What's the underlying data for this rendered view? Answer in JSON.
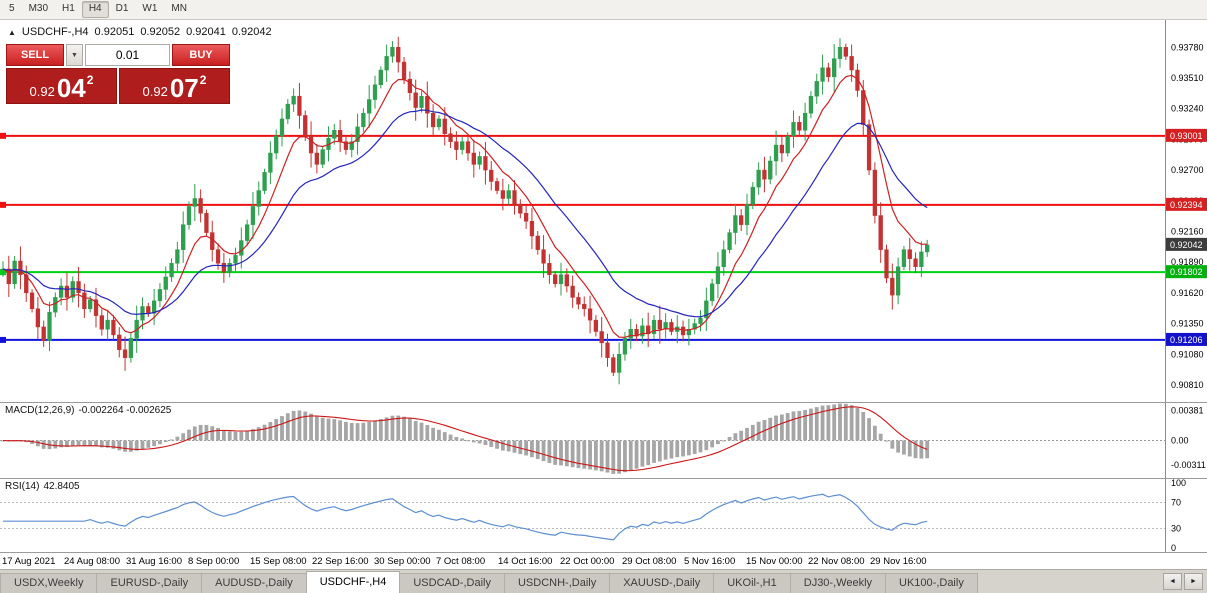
{
  "toolbar": {
    "timeframes": [
      "5",
      "M30",
      "H1",
      "H4",
      "D1",
      "W1",
      "MN"
    ],
    "active_timeframe": "H4"
  },
  "icons": {
    "panel_toggle": "▲",
    "dropdown": "▼",
    "tab_scroll_left": "◄",
    "tab_scroll_right": "►"
  },
  "chart_header": {
    "symbol": "USDCHF-,H4",
    "open": "0.92051",
    "high": "0.92052",
    "low": "0.92041",
    "close": "0.92042"
  },
  "trade_panel": {
    "sell_label": "SELL",
    "buy_label": "BUY",
    "volume": "0.01",
    "sell_price": {
      "small": "0.92",
      "big": "04",
      "sup": "2"
    },
    "buy_price": {
      "small": "0.92",
      "big": "07",
      "sup": "2"
    }
  },
  "colors": {
    "up": "#2e9e4f",
    "down": "#c23232",
    "ma_fast": "#cc2222",
    "ma_slow": "#2626bb",
    "macd_hist": "#a6a6a6",
    "macd_signal": "#cc1515",
    "rsi": "#5b8fd0",
    "axis_line": "#8c8c8c"
  },
  "chart_data": {
    "type": "candlestick",
    "symbol": "USDCHF-,H4",
    "ylim": [
      0.9066,
      0.9402
    ],
    "price_ticks": [
      "0.93780",
      "0.93510",
      "0.93240",
      "0.92970",
      "0.92700",
      "0.92430",
      "0.92160",
      "0.91890",
      "0.91620",
      "0.91350",
      "0.91080",
      "0.90810"
    ],
    "closes": [
      0.9183,
      0.917,
      0.919,
      0.9178,
      0.9162,
      0.9148,
      0.9132,
      0.912,
      0.9145,
      0.9158,
      0.9168,
      0.9158,
      0.9172,
      0.9162,
      0.9148,
      0.9156,
      0.9142,
      0.913,
      0.9138,
      0.9125,
      0.9112,
      0.9105,
      0.9122,
      0.9138,
      0.915,
      0.9144,
      0.9155,
      0.9165,
      0.9176,
      0.9188,
      0.92,
      0.9222,
      0.9238,
      0.9245,
      0.9232,
      0.9215,
      0.92,
      0.9188,
      0.918,
      0.9188,
      0.9195,
      0.9208,
      0.9222,
      0.9238,
      0.9252,
      0.9268,
      0.9285,
      0.93,
      0.9315,
      0.9328,
      0.9335,
      0.9318,
      0.93,
      0.9285,
      0.9275,
      0.9288,
      0.9298,
      0.9305,
      0.9295,
      0.9288,
      0.9295,
      0.9308,
      0.932,
      0.9332,
      0.9345,
      0.9358,
      0.937,
      0.9378,
      0.9365,
      0.935,
      0.9338,
      0.9325,
      0.9335,
      0.932,
      0.9308,
      0.9315,
      0.9302,
      0.9295,
      0.9288,
      0.9295,
      0.9285,
      0.9275,
      0.9282,
      0.927,
      0.926,
      0.9252,
      0.9245,
      0.9252,
      0.924,
      0.9232,
      0.9225,
      0.9212,
      0.92,
      0.9188,
      0.9178,
      0.917,
      0.9178,
      0.9168,
      0.9158,
      0.9152,
      0.9148,
      0.9138,
      0.9128,
      0.9118,
      0.9105,
      0.9092,
      0.9108,
      0.9122,
      0.913,
      0.9124,
      0.9133,
      0.9126,
      0.9138,
      0.913,
      0.9136,
      0.9128,
      0.9132,
      0.9125,
      0.913,
      0.9135,
      0.914,
      0.9155,
      0.917,
      0.9185,
      0.92,
      0.9215,
      0.923,
      0.9222,
      0.924,
      0.9255,
      0.927,
      0.9262,
      0.9278,
      0.9292,
      0.9285,
      0.93,
      0.9312,
      0.9305,
      0.932,
      0.9335,
      0.9348,
      0.936,
      0.9352,
      0.9368,
      0.9378,
      0.937,
      0.9358,
      0.934,
      0.931,
      0.927,
      0.923,
      0.92,
      0.9175,
      0.916,
      0.9185,
      0.92,
      0.9192,
      0.9185,
      0.9198,
      0.92042
    ],
    "ma": [
      {
        "period": 8,
        "color": "#cc2222"
      },
      {
        "period": 21,
        "color": "#2626bb"
      }
    ],
    "hlines": [
      {
        "value": 0.93001,
        "label": "0.93001",
        "color": "#ee1010",
        "tag": "#d42020",
        "width": 2
      },
      {
        "value": 0.92394,
        "label": "0.92394",
        "color": "#ee1010",
        "tag": "#d42020",
        "width": 2
      },
      {
        "value": 0.92042,
        "label": "0.92042",
        "color": "#444444",
        "tag": "#3c3c3c",
        "width": 0
      },
      {
        "value": 0.91802,
        "label": "0.91802",
        "color": "#00d013",
        "tag": "#00b00c",
        "width": 2
      },
      {
        "value": 0.91206,
        "label": "0.91206",
        "color": "#1212dd",
        "tag": "#1212c8",
        "width": 2
      }
    ],
    "time_labels": [
      "17 Aug 2021",
      "24 Aug 08:00",
      "31 Aug 16:00",
      "8 Sep 00:00",
      "15 Sep 08:00",
      "22 Sep 16:00",
      "30 Sep 00:00",
      "7 Oct 08:00",
      "14 Oct 16:00",
      "22 Oct 00:00",
      "29 Oct 08:00",
      "5 Nov 16:00",
      "15 Nov 00:00",
      "22 Nov 08:00",
      "29 Nov 16:00"
    ],
    "indicators": {
      "macd": {
        "label": "MACD(12,26,9)",
        "values": "-0.002264 -0.002625",
        "params": [
          12,
          26,
          9
        ],
        "ticks": [
          "0.00381",
          "0.00",
          "-0.00311"
        ],
        "ylim": [
          -0.0048,
          0.0048
        ]
      },
      "rsi": {
        "label": "RSI(14)",
        "value": "42.8405",
        "period": 14,
        "levels": [
          30,
          70
        ],
        "ticks": [
          "100",
          "70",
          "30",
          "0"
        ],
        "ylim": [
          0,
          100
        ]
      }
    }
  },
  "tabs": {
    "items": [
      "USDX,Weekly",
      "EURUSD-,Daily",
      "AUDUSD-,Daily",
      "USDCHF-,H4",
      "USDCAD-,Daily",
      "USDCNH-,Daily",
      "XAUUSD-,Daily",
      "UKOil-,H1",
      "DJ30-,Weekly",
      "UK100-,Daily"
    ],
    "active": "USDCHF-,H4"
  }
}
